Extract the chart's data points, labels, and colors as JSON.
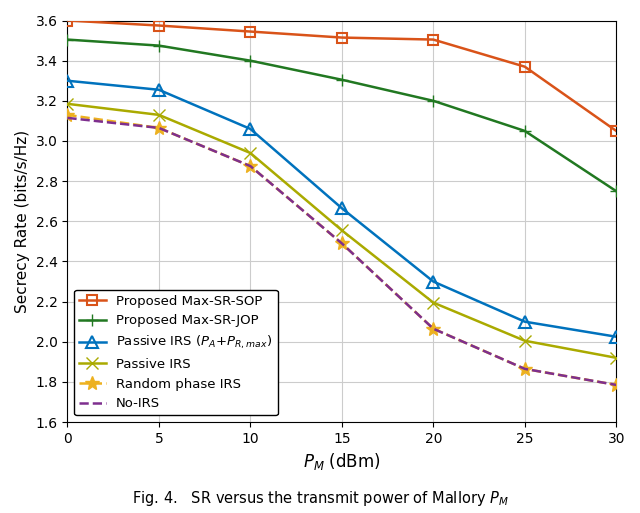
{
  "x": [
    0,
    5,
    10,
    15,
    20,
    25,
    30
  ],
  "series": [
    {
      "label": "Proposed Max-SR-SOP",
      "color": "#D95319",
      "marker": "s",
      "linestyle": "-",
      "markersize": 7,
      "linewidth": 1.8,
      "markerfacecolor": "none",
      "y": [
        3.6,
        3.575,
        3.545,
        3.515,
        3.505,
        3.37,
        3.05
      ]
    },
    {
      "label": "Proposed Max-SR-JOP",
      "color": "#217821",
      "marker": "+",
      "linestyle": "-",
      "markersize": 9,
      "linewidth": 1.8,
      "markerfacecolor": "#217821",
      "y": [
        3.505,
        3.475,
        3.4,
        3.305,
        3.2,
        3.05,
        2.75
      ]
    },
    {
      "label": "Passive IRS (P_A+P_{R,max})",
      "color": "#0072BD",
      "marker": "^",
      "linestyle": "-",
      "markersize": 8,
      "linewidth": 1.8,
      "markerfacecolor": "none",
      "y": [
        3.3,
        3.255,
        3.06,
        2.665,
        2.3,
        2.1,
        2.025
      ]
    },
    {
      "label": "Passive IRS",
      "color": "#AAAA00",
      "marker": "x",
      "linestyle": "-",
      "markersize": 8,
      "linewidth": 1.8,
      "markerfacecolor": "#AAAA00",
      "y": [
        3.185,
        3.13,
        2.94,
        2.555,
        2.195,
        2.005,
        1.92
      ]
    },
    {
      "label": "Random phase IRS",
      "color": "#EDB120",
      "marker": "*",
      "linestyle": "--",
      "markersize": 10,
      "linewidth": 1.8,
      "markerfacecolor": "#EDB120",
      "y": [
        3.13,
        3.065,
        2.875,
        2.49,
        2.065,
        1.865,
        1.785
      ]
    },
    {
      "label": "No-IRS",
      "color": "#7E2F8E",
      "marker": "",
      "linestyle": "--",
      "markersize": 0,
      "linewidth": 1.8,
      "markerfacecolor": "#7E2F8E",
      "y": [
        3.115,
        3.065,
        2.875,
        2.49,
        2.065,
        1.865,
        1.785
      ]
    }
  ],
  "xlabel": "$P_M$ (dBm)",
  "ylabel": "Secrecy Rate (bits/s/Hz)",
  "ylim": [
    1.6,
    3.6
  ],
  "xlim": [
    0,
    30
  ],
  "yticks": [
    1.6,
    1.8,
    2.0,
    2.2,
    2.4,
    2.6,
    2.8,
    3.0,
    3.2,
    3.4,
    3.6
  ],
  "xticks": [
    0,
    5,
    10,
    15,
    20,
    25,
    30
  ],
  "figcaption": "Fig. 4.   SR versus the transmit power of Mallory $P_M$",
  "grid_color": "#CCCCCC",
  "background_color": "#FFFFFF",
  "legend_loc": "lower left",
  "legend_fontsize": 9.5
}
